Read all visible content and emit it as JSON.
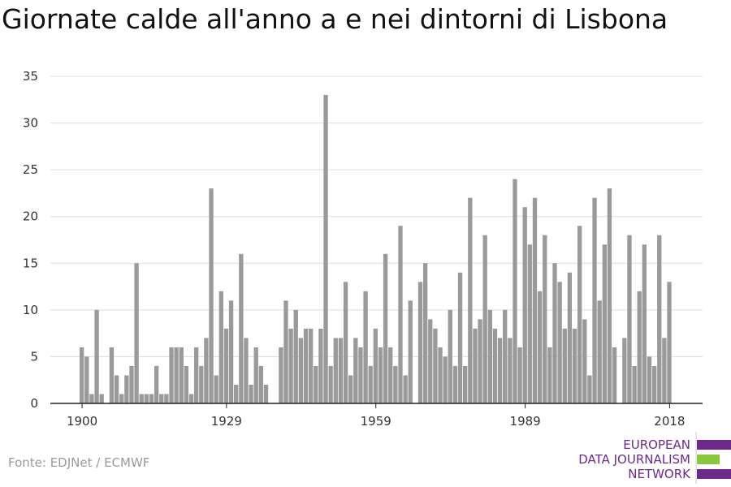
{
  "title": "Giornate calde all'anno a e nei dintorni di Lisbona",
  "source": "Fonte: EDJNet / ECMWF",
  "logo": {
    "lines": [
      "EUROPEAN",
      "DATA JOURNALISM",
      "NETWORK"
    ],
    "purple": "#6b2a8c",
    "green": "#8cc63f"
  },
  "chart_data": {
    "type": "bar",
    "title": "Giornate calde all'anno a e nei dintorni di Lisbona",
    "xlabel": "",
    "ylabel": "",
    "ylim": [
      0,
      35
    ],
    "yticks": [
      0,
      5,
      10,
      15,
      20,
      25,
      30,
      35
    ],
    "xticks": [
      1900,
      1929,
      1959,
      1989,
      2018
    ],
    "grid": true,
    "bar_color": "#9a9a9a",
    "x": [
      1900,
      1901,
      1902,
      1903,
      1904,
      1905,
      1906,
      1907,
      1908,
      1909,
      1910,
      1911,
      1912,
      1913,
      1914,
      1915,
      1916,
      1917,
      1918,
      1919,
      1920,
      1921,
      1922,
      1923,
      1924,
      1925,
      1926,
      1927,
      1928,
      1929,
      1930,
      1931,
      1932,
      1933,
      1934,
      1935,
      1936,
      1937,
      1938,
      1939,
      1940,
      1941,
      1942,
      1943,
      1944,
      1945,
      1946,
      1947,
      1948,
      1949,
      1950,
      1951,
      1952,
      1953,
      1954,
      1955,
      1956,
      1957,
      1958,
      1959,
      1960,
      1961,
      1962,
      1963,
      1964,
      1965,
      1966,
      1967,
      1968,
      1969,
      1970,
      1971,
      1972,
      1973,
      1974,
      1975,
      1976,
      1977,
      1978,
      1979,
      1980,
      1981,
      1982,
      1983,
      1984,
      1985,
      1986,
      1987,
      1988,
      1989,
      1990,
      1991,
      1992,
      1993,
      1994,
      1995,
      1996,
      1997,
      1998,
      1999,
      2000,
      2001,
      2002,
      2003,
      2004,
      2005,
      2006,
      2007,
      2008,
      2009,
      2010,
      2011,
      2012,
      2013,
      2014,
      2015,
      2016,
      2017,
      2018
    ],
    "values": [
      6,
      5,
      1,
      10,
      1,
      0,
      6,
      3,
      1,
      3,
      4,
      15,
      1,
      1,
      1,
      4,
      1,
      1,
      6,
      6,
      6,
      4,
      1,
      6,
      4,
      7,
      23,
      3,
      12,
      8,
      11,
      2,
      16,
      7,
      2,
      6,
      4,
      2,
      0,
      0,
      6,
      11,
      8,
      10,
      7,
      8,
      8,
      4,
      8,
      33,
      4,
      7,
      7,
      13,
      3,
      7,
      6,
      12,
      4,
      8,
      6,
      16,
      6,
      4,
      19,
      3,
      11,
      0,
      13,
      15,
      9,
      8,
      6,
      5,
      10,
      4,
      14,
      4,
      22,
      8,
      9,
      18,
      10,
      8,
      7,
      10,
      7,
      24,
      6,
      21,
      17,
      22,
      12,
      18,
      6,
      15,
      13,
      8,
      14,
      8,
      19,
      9,
      3,
      22,
      11,
      17,
      23,
      6,
      0,
      7,
      18,
      4,
      12,
      17,
      5,
      4,
      18,
      7,
      13
    ]
  }
}
